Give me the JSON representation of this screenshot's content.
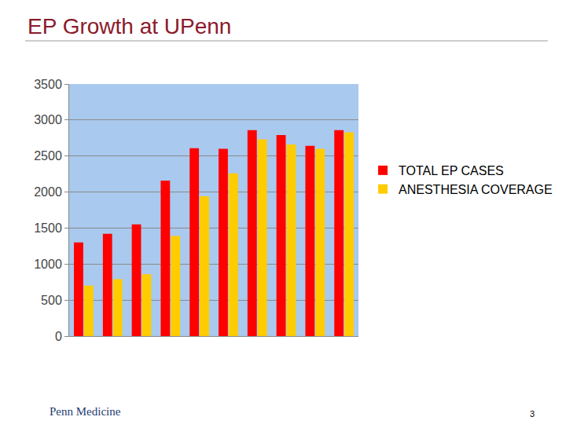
{
  "chart_data": {
    "type": "bar",
    "title": "EP Growth at UPenn",
    "categories": [
      null,
      null,
      null,
      null,
      null,
      null,
      null,
      null,
      null,
      null
    ],
    "series": [
      {
        "name": "TOTAL EP CASES",
        "color": "#ff0000",
        "values": [
          1300,
          1420,
          1550,
          2160,
          2610,
          2600,
          2860,
          2790,
          2640,
          2860
        ]
      },
      {
        "name": "ANESTHESIA COVERAGE",
        "color": "#ffcc00",
        "values": [
          700,
          790,
          860,
          1390,
          1940,
          2260,
          2730,
          2660,
          2600,
          2830
        ]
      }
    ],
    "ylim": [
      0,
      3500
    ],
    "yticks": [
      0,
      500,
      1000,
      1500,
      2000,
      2500,
      3000,
      3500
    ],
    "grid": true,
    "legend": "right",
    "tick_labels": "y",
    "annotations": [
      "Penn Medicine",
      "3"
    ]
  }
}
